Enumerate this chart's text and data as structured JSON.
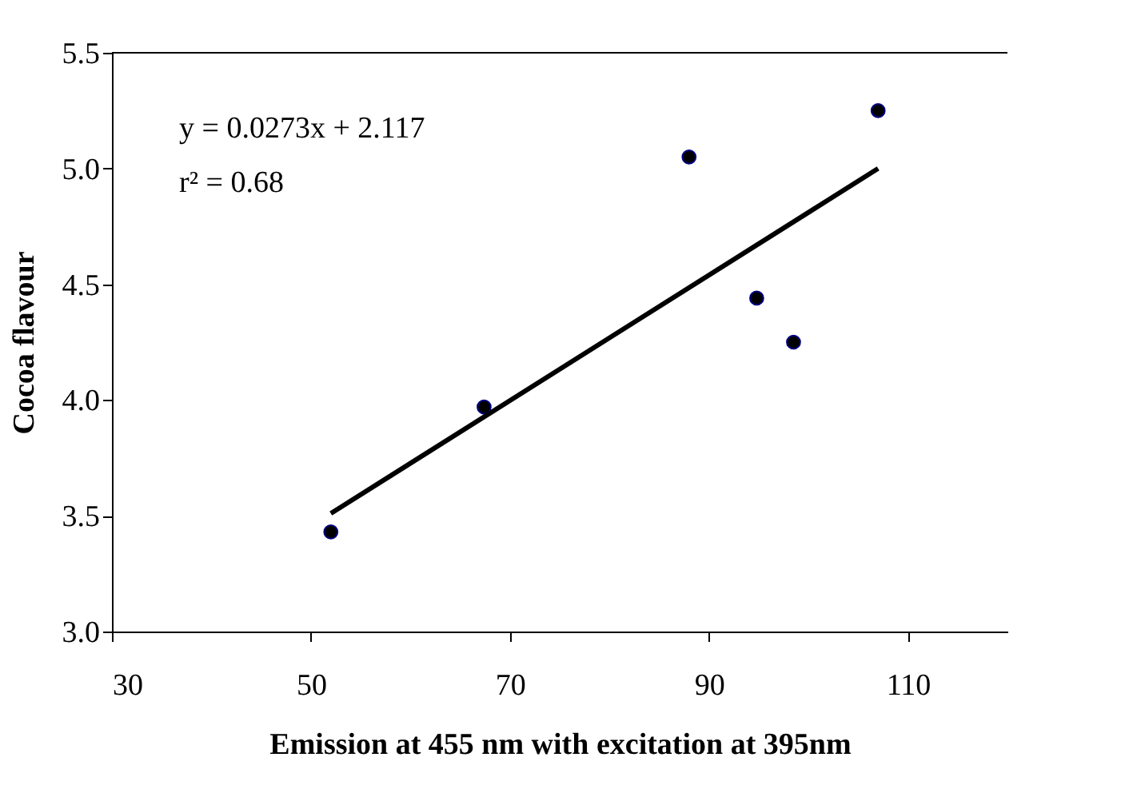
{
  "chart_data": {
    "type": "scatter",
    "xlabel": "Emission at 455 nm with excitation at 395nm",
    "ylabel": "Cocoa flavour",
    "annotations": [
      "y = 0.0273x + 2.117",
      "r² = 0.68"
    ],
    "x": [
      52.0,
      67.4,
      88.0,
      94.8,
      98.5,
      107.0
    ],
    "series": [
      {
        "color": "#000000",
        "marker": "circle",
        "values": [
          3.43,
          3.97,
          5.05,
          4.44,
          4.25,
          5.25
        ]
      },
      {
        "type": "line",
        "marker": "none",
        "color": "#000000",
        "x": [
          52,
          107
        ],
        "values": [
          3.51,
          5.0
        ]
      }
    ],
    "xlim": [
      30,
      120
    ],
    "ylim": [
      3.0,
      5.5
    ],
    "xticks": [
      30,
      50,
      70,
      90,
      110
    ],
    "yticks": [
      {
        "value": 3,
        "label": "3.0"
      },
      3.5,
      {
        "value": 4,
        "label": "4.0"
      },
      4.5,
      {
        "value": 5,
        "label": "5.0"
      },
      5.5
    ],
    "grid": false
  }
}
